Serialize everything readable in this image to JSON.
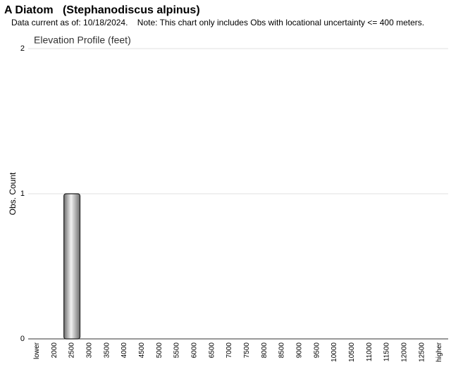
{
  "chart_data": {
    "type": "bar",
    "title": "A Diatom   (Stephanodiscus alpinus)",
    "subtitle": "Data current as of: 10/18/2024.    Note: This chart only includes Obs with locational uncertainty <= 400 meters.",
    "chart_title": "Elevation Profile (feet)",
    "y_label": "Obs. Count",
    "categories": [
      "lower",
      "2000",
      "2500",
      "3000",
      "3500",
      "4000",
      "4500",
      "5000",
      "5500",
      "6000",
      "6500",
      "7000",
      "7500",
      "8000",
      "8500",
      "9000",
      "9500",
      "10000",
      "10500",
      "11000",
      "11500",
      "12000",
      "12500",
      "higher"
    ],
    "values": [
      0,
      0,
      1,
      0,
      0,
      0,
      0,
      0,
      0,
      0,
      0,
      0,
      0,
      0,
      0,
      0,
      0,
      0,
      0,
      0,
      0,
      0,
      0,
      0
    ],
    "color": "#9a9a9a",
    "ylim": [
      0,
      2
    ],
    "yticks": [
      0,
      1,
      2
    ],
    "grid": true
  }
}
